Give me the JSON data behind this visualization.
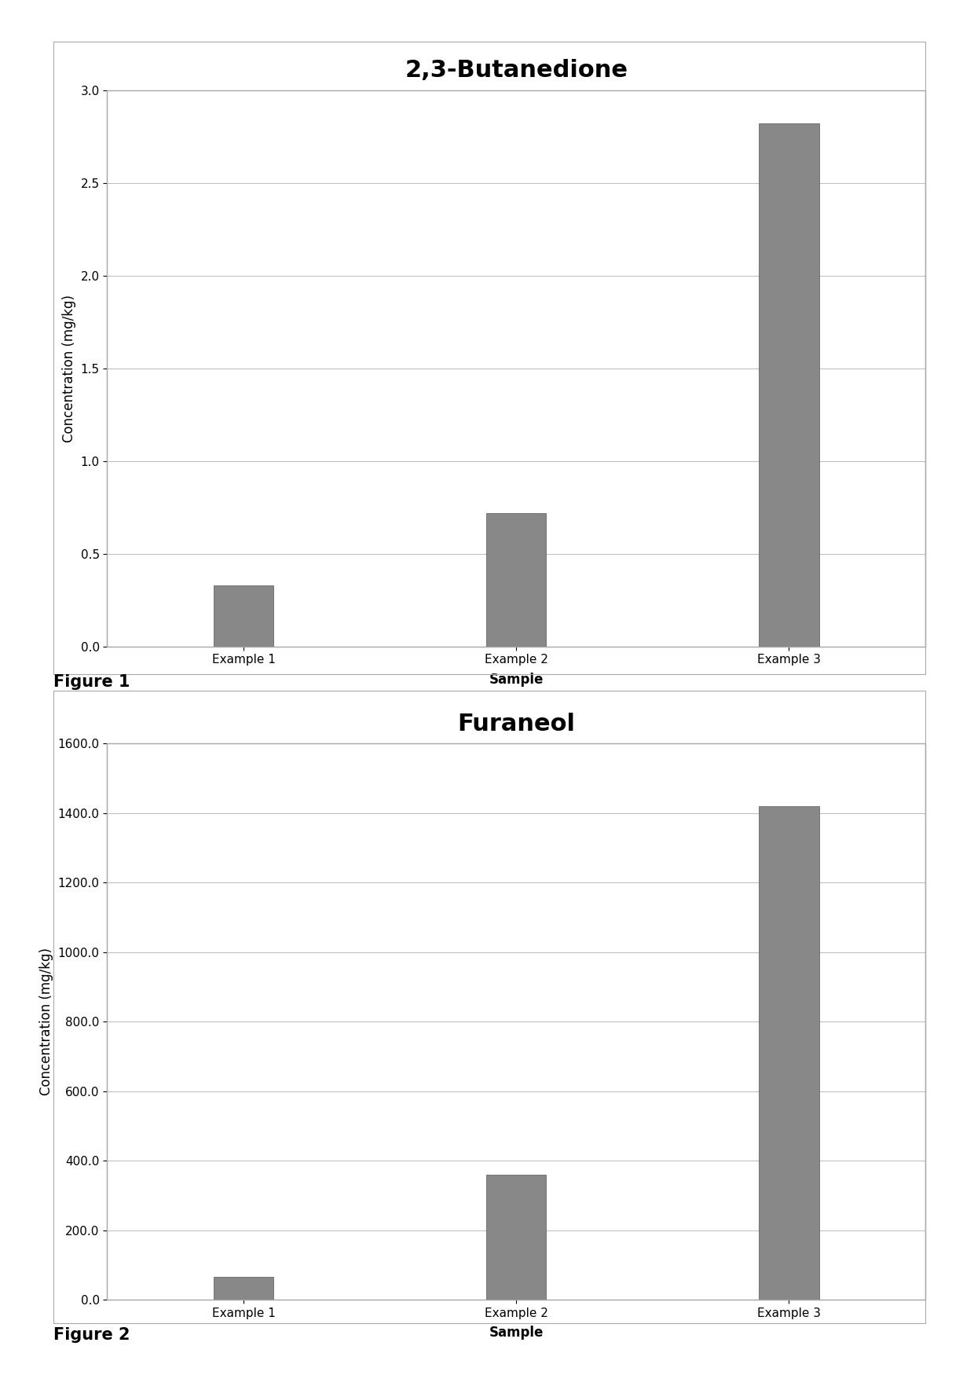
{
  "chart1": {
    "title": "2,3-Butanedione",
    "categories": [
      "Example 1",
      "Example 2",
      "Example 3"
    ],
    "values": [
      0.33,
      0.72,
      2.82
    ],
    "ylabel": "Concentration (mg/kg)",
    "xlabel": "Sample",
    "ylim": [
      0.0,
      3.0
    ],
    "yticks": [
      0.0,
      0.5,
      1.0,
      1.5,
      2.0,
      2.5,
      3.0
    ],
    "ytick_labels": [
      "0.0",
      "0.5",
      "1.0",
      "1.5",
      "2.0",
      "2.5",
      "3.0"
    ],
    "figure_label": "Figure 1"
  },
  "chart2": {
    "title": "Furaneol",
    "categories": [
      "Example 1",
      "Example 2",
      "Example 3"
    ],
    "values": [
      65.0,
      360.0,
      1420.0
    ],
    "ylabel": "Concentration (mg/kg)",
    "xlabel": "Sample",
    "ylim": [
      0.0,
      1600.0
    ],
    "yticks": [
      0.0,
      200.0,
      400.0,
      600.0,
      800.0,
      1000.0,
      1200.0,
      1400.0,
      1600.0
    ],
    "ytick_labels": [
      "0.0",
      "200.0",
      "400.0",
      "600.0",
      "800.0",
      "1000.0",
      "1200.0",
      "1400.0",
      "1600.0"
    ],
    "figure_label": "Figure 2"
  },
  "bar_color": "#888888",
  "bar_edgecolor": "#555555",
  "background_color": "#ffffff",
  "chart_bg_color": "#ffffff",
  "title_fontsize": 22,
  "axis_label_fontsize": 12,
  "tick_fontsize": 11,
  "figure_label_fontsize": 15,
  "xlabel_fontweight": "bold",
  "bar_width": 0.22,
  "box_color": "#aaaaaa",
  "grid_color": "#bbbbbb",
  "grid_linewidth": 0.7
}
